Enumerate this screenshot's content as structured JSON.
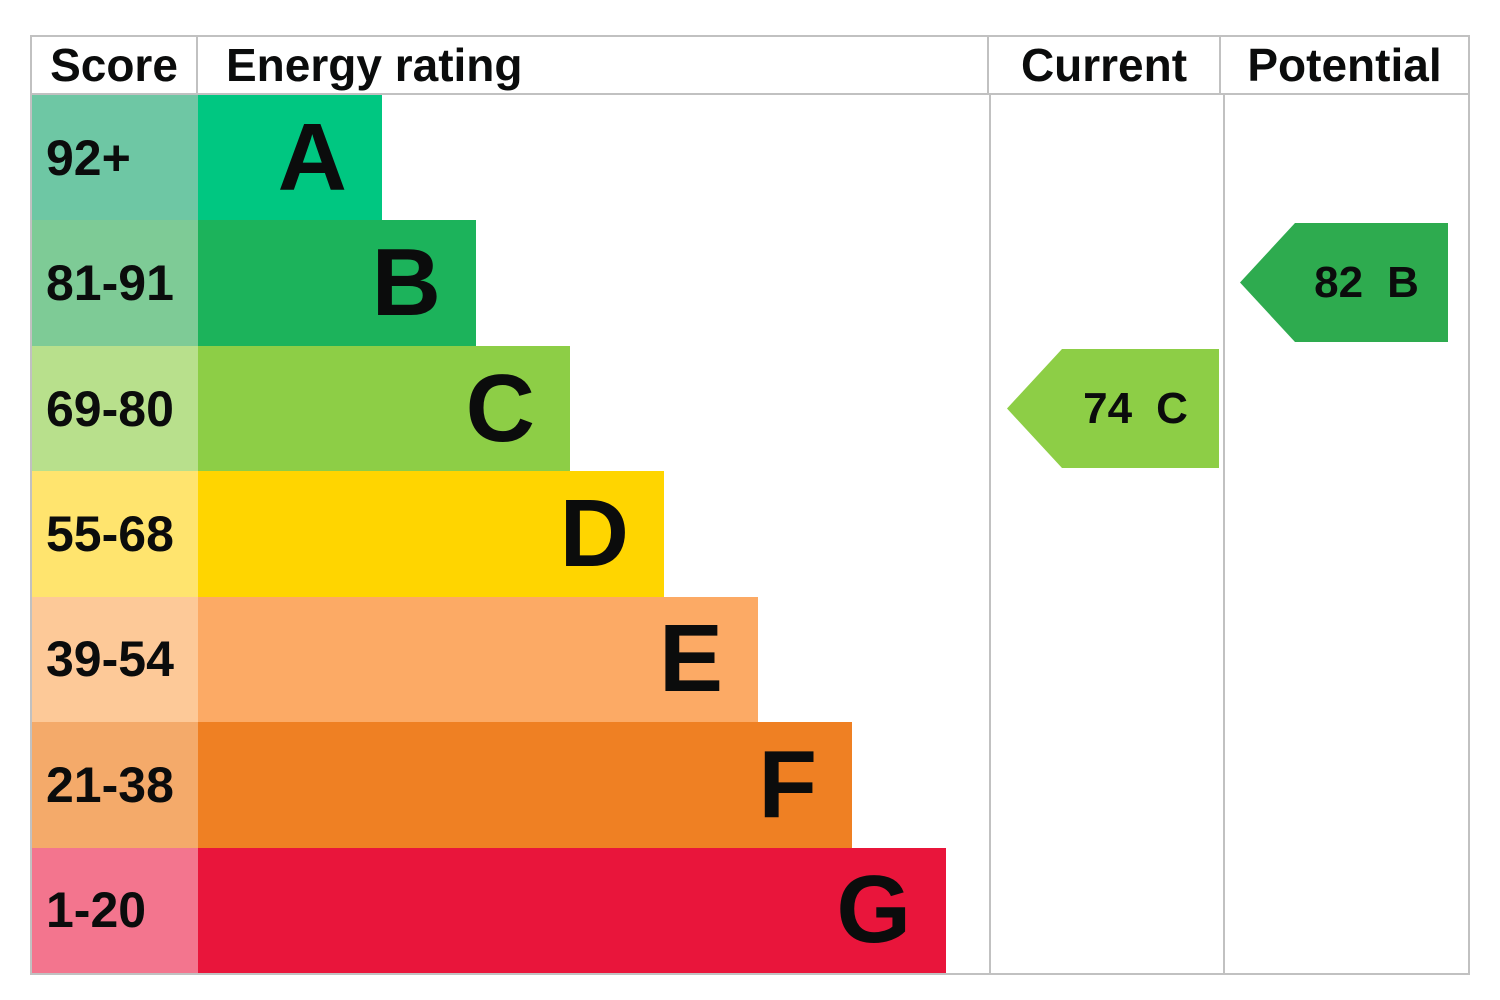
{
  "header": {
    "score": "Score",
    "energy_rating": "Energy rating",
    "current": "Current",
    "potential": "Potential"
  },
  "bands": [
    {
      "letter": "A",
      "score_range": "92+",
      "bar_color": "#00c781",
      "score_cell_color": "#6ec7a4"
    },
    {
      "letter": "B",
      "score_range": "81-91",
      "bar_color": "#1cb35b",
      "score_cell_color": "#7ecb96"
    },
    {
      "letter": "C",
      "score_range": "69-80",
      "bar_color": "#8dce46",
      "score_cell_color": "#b8e08c"
    },
    {
      "letter": "D",
      "score_range": "55-68",
      "bar_color": "#ffd500",
      "score_cell_color": "#ffe46e"
    },
    {
      "letter": "E",
      "score_range": "39-54",
      "bar_color": "#fcaa65",
      "score_cell_color": "#fdc998"
    },
    {
      "letter": "F",
      "score_range": "21-38",
      "bar_color": "#ef8023",
      "score_cell_color": "#f4aa6a"
    },
    {
      "letter": "G",
      "score_range": "1-20",
      "bar_color": "#e9153b",
      "score_cell_color": "#f3758e"
    }
  ],
  "current": {
    "score": "74",
    "band": "C",
    "arrow_color": "#8dce46"
  },
  "potential": {
    "score": "82",
    "band": "B",
    "arrow_color": "#2eab4f"
  },
  "border_color": "#c1c1c1",
  "chart_data": {
    "type": "bar",
    "variant": "epc-energy-rating-certificate",
    "title": "Energy rating",
    "columns": [
      "Score",
      "Energy rating",
      "Current",
      "Potential"
    ],
    "categories": [
      "A",
      "B",
      "C",
      "D",
      "E",
      "F",
      "G"
    ],
    "score_ranges": [
      "92+",
      "81-91",
      "69-80",
      "55-68",
      "39-54",
      "21-38",
      "1-20"
    ],
    "band_colors": [
      "#00c781",
      "#1cb35b",
      "#8dce46",
      "#ffd500",
      "#fcaa65",
      "#ef8023",
      "#e9153b"
    ],
    "bar_lengths_relative": [
      1,
      1.51,
      2.02,
      2.53,
      3.05,
      3.54,
      4.07
    ],
    "current": {
      "score": 74,
      "band": "C"
    },
    "potential": {
      "score": 82,
      "band": "B"
    },
    "legend_position": "none",
    "grid": false
  }
}
